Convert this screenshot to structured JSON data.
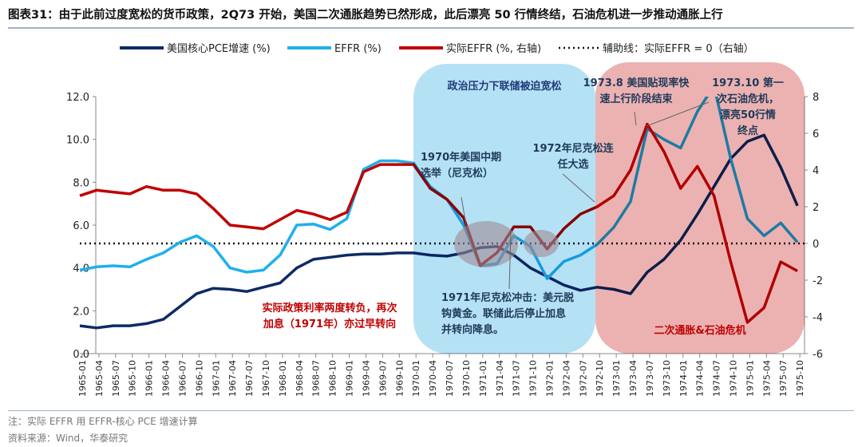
{
  "title": "图表31：由于此前过度宽松的货币政策，2Q73 开始，美国二次通胀趋势已然形成，此后漂亮 50 行情终结，石油危机进一步推动通胀上行",
  "notes": [
    "注：实际 EFFR 用 EFFR-核心 PCE 增速计算",
    "资料来源：Wind，华泰研究"
  ],
  "colors": {
    "core_pce": "#0d2a66",
    "effr": "#1fb0ea",
    "real_effr": "#c00000",
    "blue_region": "#a8dcf3",
    "red_region": "#e9a5a5",
    "ellipse": "#9e8a94"
  },
  "chart_data": {
    "type": "line",
    "categories": [
      "1965-01",
      "1965-04",
      "1965-07",
      "1965-10",
      "1966-01",
      "1966-04",
      "1966-07",
      "1966-10",
      "1967-01",
      "1967-04",
      "1967-07",
      "1967-10",
      "1968-01",
      "1968-04",
      "1968-07",
      "1968-10",
      "1969-01",
      "1969-04",
      "1969-07",
      "1969-10",
      "1970-01",
      "1970-04",
      "1970-07",
      "1970-10",
      "1971-01",
      "1971-04",
      "1971-07",
      "1971-10",
      "1972-01",
      "1972-04",
      "1972-07",
      "1972-10",
      "1973-01",
      "1973-04",
      "1973-07",
      "1973-10",
      "1974-01",
      "1974-04",
      "1974-07",
      "1974-10",
      "1975-01",
      "1975-04",
      "1975-07",
      "1975-10"
    ],
    "ylim": [
      0,
      12
    ],
    "y2lim": [
      -6,
      8
    ],
    "yticks": [
      "0.0",
      "2.0",
      "4.0",
      "6.0",
      "8.0",
      "10.0",
      "12.0"
    ],
    "y2ticks": [
      "-6",
      "-4",
      "-2",
      "0",
      "2",
      "4",
      "6",
      "8"
    ],
    "legend_position": "top",
    "series": [
      {
        "name": "美国核心PCE增速 (%)",
        "axis": "left",
        "values": [
          1.3,
          1.2,
          1.3,
          1.3,
          1.4,
          1.6,
          2.2,
          2.8,
          3.05,
          3.0,
          2.9,
          3.1,
          3.3,
          4.0,
          4.4,
          4.5,
          4.6,
          4.65,
          4.65,
          4.7,
          4.7,
          4.6,
          4.55,
          4.7,
          4.95,
          5.0,
          4.6,
          4.0,
          3.6,
          3.2,
          2.95,
          3.1,
          3.0,
          2.8,
          3.8,
          4.4,
          5.3,
          6.5,
          7.8,
          9.1,
          9.9,
          10.2,
          8.7,
          6.9
        ]
      },
      {
        "name": "EFFR (%)",
        "axis": "left",
        "values": [
          3.9,
          4.05,
          4.1,
          4.05,
          4.4,
          4.7,
          5.2,
          5.5,
          5.0,
          4.0,
          3.8,
          3.9,
          4.6,
          6.0,
          6.05,
          5.8,
          6.3,
          8.6,
          9.0,
          9.0,
          8.9,
          7.8,
          7.2,
          6.0,
          4.1,
          4.2,
          5.5,
          5.0,
          3.5,
          4.3,
          4.6,
          5.1,
          5.9,
          7.1,
          10.5,
          10.0,
          9.6,
          11.3,
          12.5,
          9.1,
          6.3,
          5.5,
          6.1,
          5.2
        ]
      },
      {
        "name": "实际EFFR (%, 右轴)",
        "axis": "right",
        "values": [
          2.6,
          2.9,
          2.8,
          2.7,
          3.1,
          2.9,
          2.9,
          2.7,
          1.9,
          1.0,
          0.9,
          0.8,
          1.3,
          1.8,
          1.6,
          1.3,
          1.7,
          3.9,
          4.3,
          4.3,
          4.3,
          3.0,
          2.4,
          1.4,
          -1.2,
          -0.5,
          0.9,
          0.9,
          -0.3,
          0.8,
          1.6,
          2.0,
          2.6,
          4.0,
          6.5,
          5.0,
          3.0,
          4.2,
          2.6,
          -1.0,
          -4.3,
          -3.5,
          -1.0,
          -1.5
        ]
      },
      {
        "name": "辅助线：实际EFFR = 0（右轴）",
        "axis": "right",
        "constant": 0
      }
    ],
    "annotations": {
      "blue_region": "政治压力下联储被迫宽松",
      "red_region": "二次通胀&石油危机",
      "a1970": [
        "1970年美国中期",
        "选举（尼克松）"
      ],
      "a1971": [
        "1971年尼克松冲击：美元脱",
        "钩黄金。联储此后停止加息",
        "并转向降息。"
      ],
      "a1972": [
        "1972年尼克松连",
        "任大选"
      ],
      "a1973_8": [
        "1973.8 美国贴现率快",
        "速上行阶段结束"
      ],
      "a1973_10": [
        "1973.10 第一",
        "次石油危机，",
        "漂亮50行情",
        "终点"
      ],
      "neg": [
        "实际政策利率两度转负，再次",
        "加息（1971年）亦过早转向"
      ]
    }
  }
}
